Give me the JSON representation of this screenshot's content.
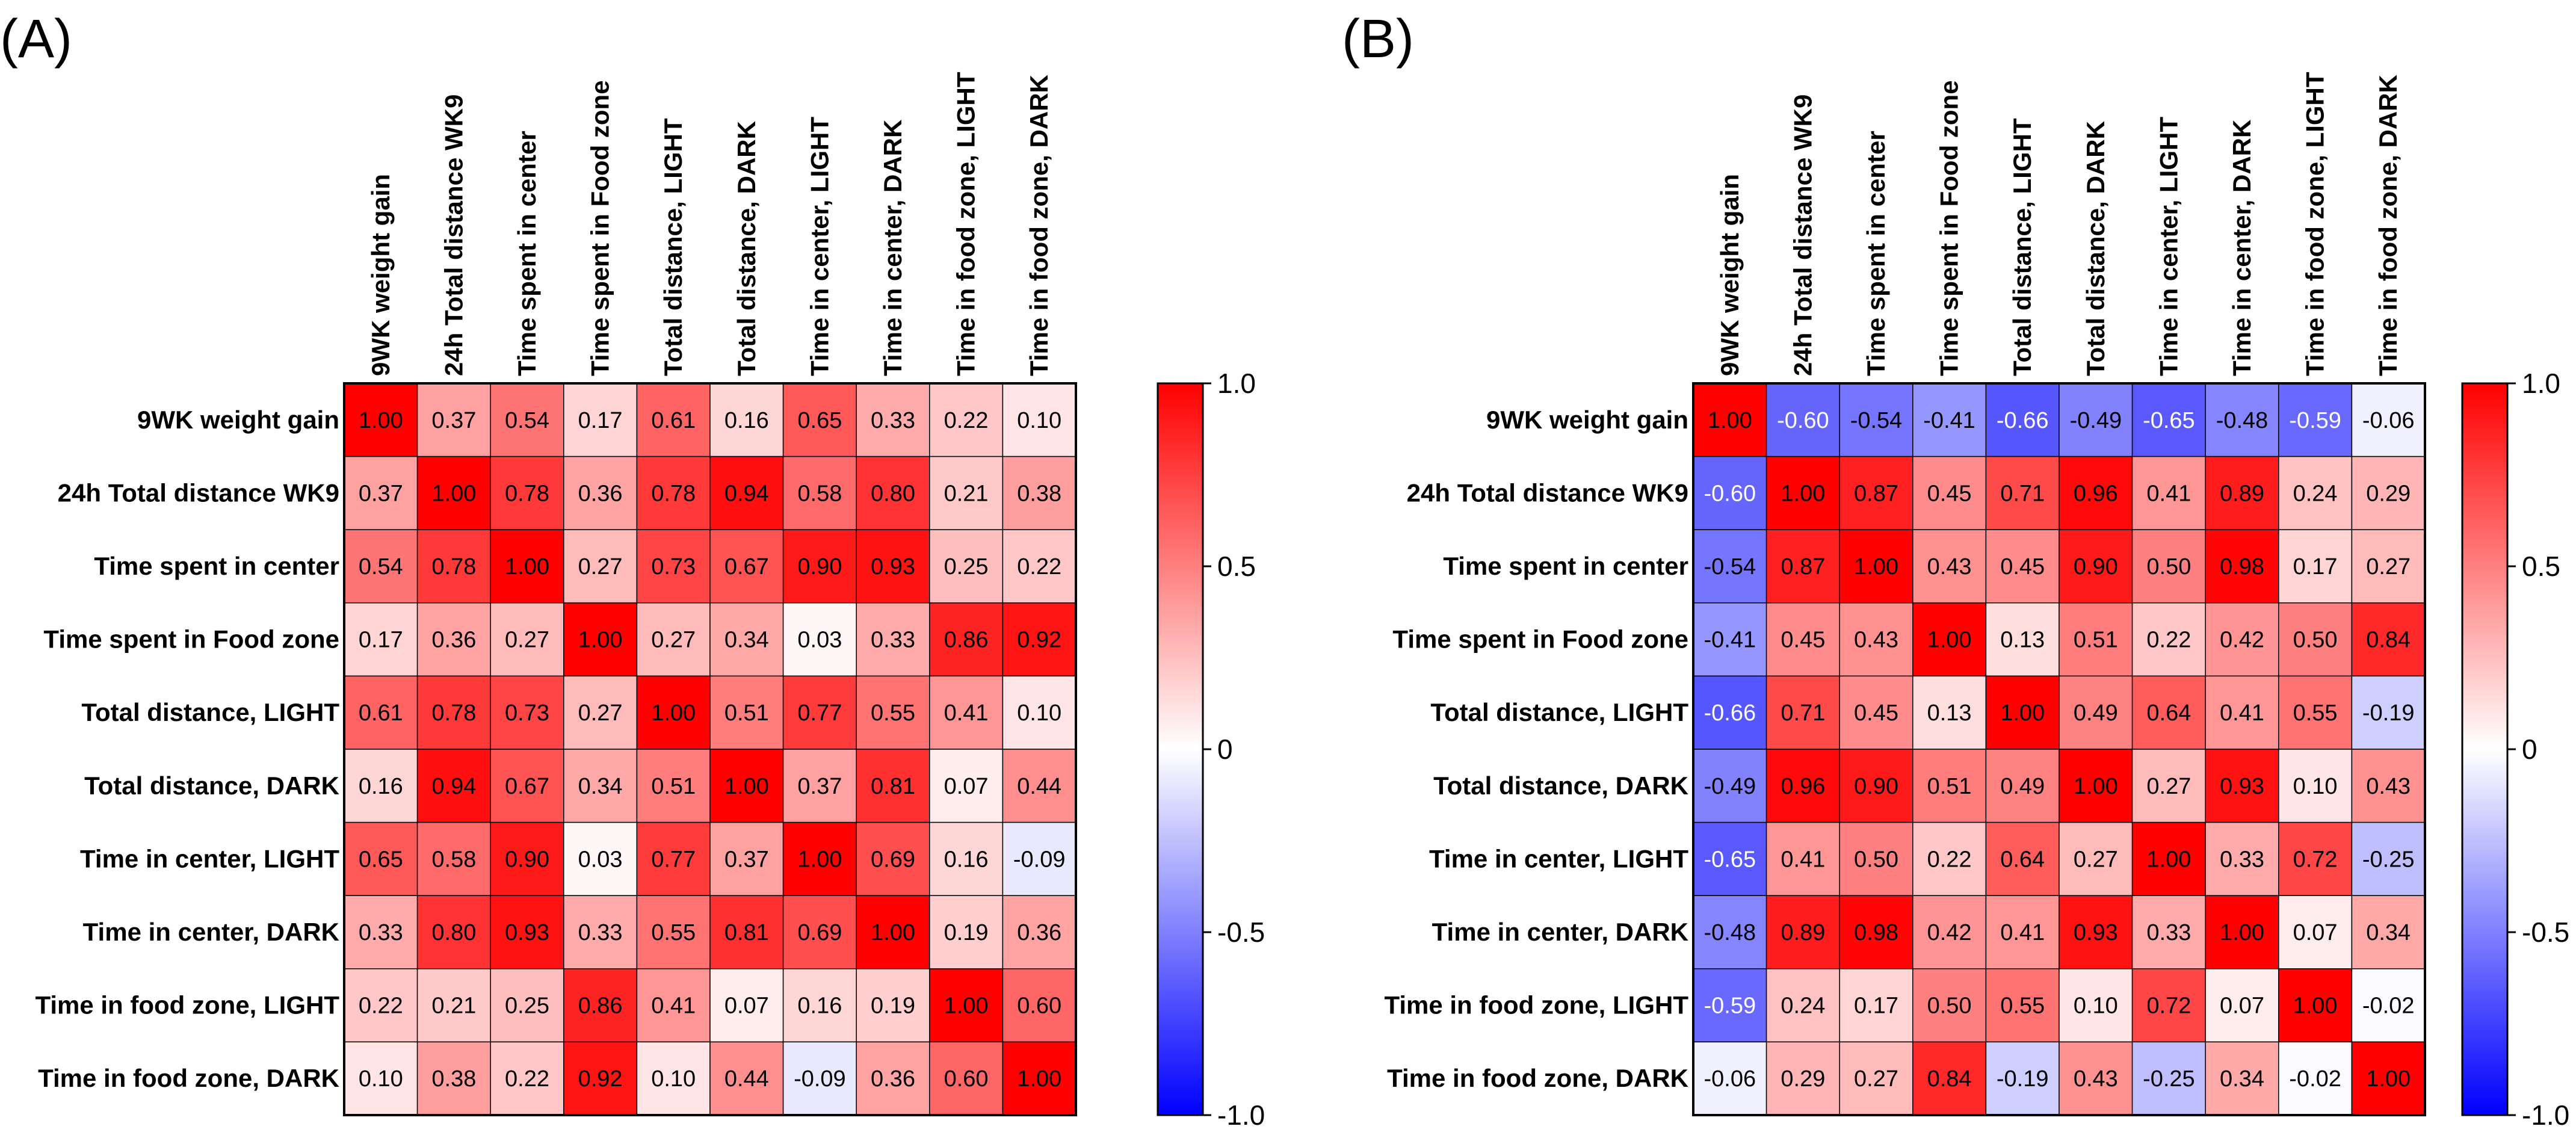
{
  "chart_data": [
    {
      "type": "heatmap",
      "panel_label": "(A)",
      "row_labels": [
        "9WK weight gain",
        "24h Total distance WK9",
        "Time spent in center",
        "Time spent in Food zone",
        "Total distance, LIGHT",
        "Total distance, DARK",
        "Time in center, LIGHT",
        "Time in center, DARK",
        "Time in food zone, LIGHT",
        "Time in food zone, DARK"
      ],
      "col_labels": [
        "9WK weight gain",
        "24h Total distance WK9",
        "Time spent in center",
        "Time spent in Food zone",
        "Total distance, LIGHT",
        "Total distance, DARK",
        "Time in center, LIGHT",
        "Time in center, DARK",
        "Time in food zone, LIGHT",
        "Time in food zone, DARK"
      ],
      "values": [
        [
          1.0,
          0.37,
          0.54,
          0.17,
          0.61,
          0.16,
          0.65,
          0.33,
          0.22,
          0.1
        ],
        [
          0.37,
          1.0,
          0.78,
          0.36,
          0.78,
          0.94,
          0.58,
          0.8,
          0.21,
          0.38
        ],
        [
          0.54,
          0.78,
          1.0,
          0.27,
          0.73,
          0.67,
          0.9,
          0.93,
          0.25,
          0.22
        ],
        [
          0.17,
          0.36,
          0.27,
          1.0,
          0.27,
          0.34,
          0.03,
          0.33,
          0.86,
          0.92
        ],
        [
          0.61,
          0.78,
          0.73,
          0.27,
          1.0,
          0.51,
          0.77,
          0.55,
          0.41,
          0.1
        ],
        [
          0.16,
          0.94,
          0.67,
          0.34,
          0.51,
          1.0,
          0.37,
          0.81,
          0.07,
          0.44
        ],
        [
          0.65,
          0.58,
          0.9,
          0.03,
          0.77,
          0.37,
          1.0,
          0.69,
          0.16,
          -0.09
        ],
        [
          0.33,
          0.8,
          0.93,
          0.33,
          0.55,
          0.81,
          0.69,
          1.0,
          0.19,
          0.36
        ],
        [
          0.22,
          0.21,
          0.25,
          0.86,
          0.41,
          0.07,
          0.16,
          0.19,
          1.0,
          0.6
        ],
        [
          0.1,
          0.38,
          0.22,
          0.92,
          0.1,
          0.44,
          -0.09,
          0.36,
          0.6,
          1.0
        ]
      ],
      "colorbar": {
        "range": [
          -1.0,
          1.0
        ],
        "ticks": [
          "1.0",
          "0.5",
          "0",
          "-0.5",
          "-1.0"
        ],
        "tick_values": [
          1.0,
          0.5,
          0,
          -0.5,
          -1.0
        ],
        "colors": {
          "low": "#0000ff",
          "mid": "#ffffff",
          "high": "#ff0000"
        }
      }
    },
    {
      "type": "heatmap",
      "panel_label": "(B)",
      "row_labels": [
        "9WK weight gain",
        "24h Total distance WK9",
        "Time spent in center",
        "Time spent in Food zone",
        "Total distance, LIGHT",
        "Total distance, DARK",
        "Time in center, LIGHT",
        "Time in center, DARK",
        "Time in food zone, LIGHT",
        "Time in food zone, DARK"
      ],
      "col_labels": [
        "9WK weight gain",
        "24h Total distance WK9",
        "Time spent in center",
        "Time spent in Food zone",
        "Total distance, LIGHT",
        "Total distance, DARK",
        "Time in center, LIGHT",
        "Time in center, DARK",
        "Time in food zone, LIGHT",
        "Time in food zone, DARK"
      ],
      "values": [
        [
          1.0,
          -0.6,
          -0.54,
          -0.41,
          -0.66,
          -0.49,
          -0.65,
          -0.48,
          -0.59,
          -0.06
        ],
        [
          -0.6,
          1.0,
          0.87,
          0.45,
          0.71,
          0.96,
          0.41,
          0.89,
          0.24,
          0.29
        ],
        [
          -0.54,
          0.87,
          1.0,
          0.43,
          0.45,
          0.9,
          0.5,
          0.98,
          0.17,
          0.27
        ],
        [
          -0.41,
          0.45,
          0.43,
          1.0,
          0.13,
          0.51,
          0.22,
          0.42,
          0.5,
          0.84
        ],
        [
          -0.66,
          0.71,
          0.45,
          0.13,
          1.0,
          0.49,
          0.64,
          0.41,
          0.55,
          -0.19
        ],
        [
          -0.49,
          0.96,
          0.9,
          0.51,
          0.49,
          1.0,
          0.27,
          0.93,
          0.1,
          0.43
        ],
        [
          -0.65,
          0.41,
          0.5,
          0.22,
          0.64,
          0.27,
          1.0,
          0.33,
          0.72,
          -0.25
        ],
        [
          -0.48,
          0.89,
          0.98,
          0.42,
          0.41,
          0.93,
          0.33,
          1.0,
          0.07,
          0.34
        ],
        [
          -0.59,
          0.24,
          0.17,
          0.5,
          0.55,
          0.1,
          0.72,
          0.07,
          1.0,
          -0.02
        ],
        [
          -0.06,
          0.29,
          0.27,
          0.84,
          -0.19,
          0.43,
          -0.25,
          0.34,
          -0.02,
          1.0
        ]
      ],
      "colorbar": {
        "range": [
          -1.0,
          1.0
        ],
        "ticks": [
          "1.0",
          "0.5",
          "0",
          "-0.5",
          "-1.0"
        ],
        "tick_values": [
          1.0,
          0.5,
          0,
          -0.5,
          -1.0
        ],
        "colors": {
          "low": "#0000ff",
          "mid": "#ffffff",
          "high": "#ff0000"
        }
      }
    }
  ]
}
